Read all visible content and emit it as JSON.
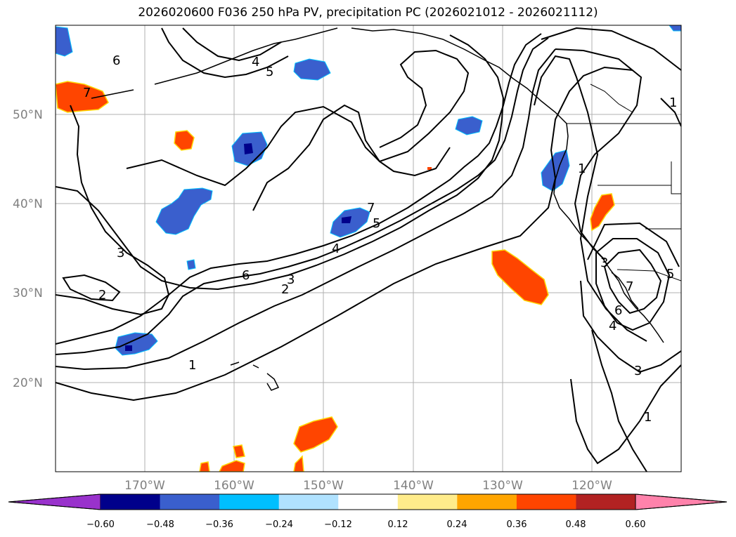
{
  "title": "2026020600 F036 250 hPa PV, precipitation PC (2026021012 - 2026021112)",
  "lat_labels": [
    "50°N",
    "40°N",
    "30°N",
    "20°N"
  ],
  "lon_labels": [
    "170°W",
    "160°W",
    "150°W",
    "140°W",
    "130°W",
    "120°W"
  ],
  "colorbar": {
    "colors": [
      "#9932cc",
      "#00008b",
      "#3a5fcd",
      "#00bfff",
      "#b0e2ff",
      "#ffffff",
      "#ffec8b",
      "#ffa500",
      "#ff4500",
      "#b22222",
      "#ff82ab"
    ],
    "ticks": [
      "−0.60",
      "−0.48",
      "−0.36",
      "−0.24",
      "−0.12",
      "0.12",
      "0.24",
      "0.36",
      "0.48",
      "0.60"
    ]
  },
  "contour_labels": [
    "7",
    "6",
    "4",
    "5",
    "3",
    "2",
    "1",
    "7",
    "5",
    "4",
    "6",
    "3",
    "2",
    "1",
    "1",
    "3",
    "5",
    "7",
    "6",
    "4",
    "3",
    "1"
  ]
}
